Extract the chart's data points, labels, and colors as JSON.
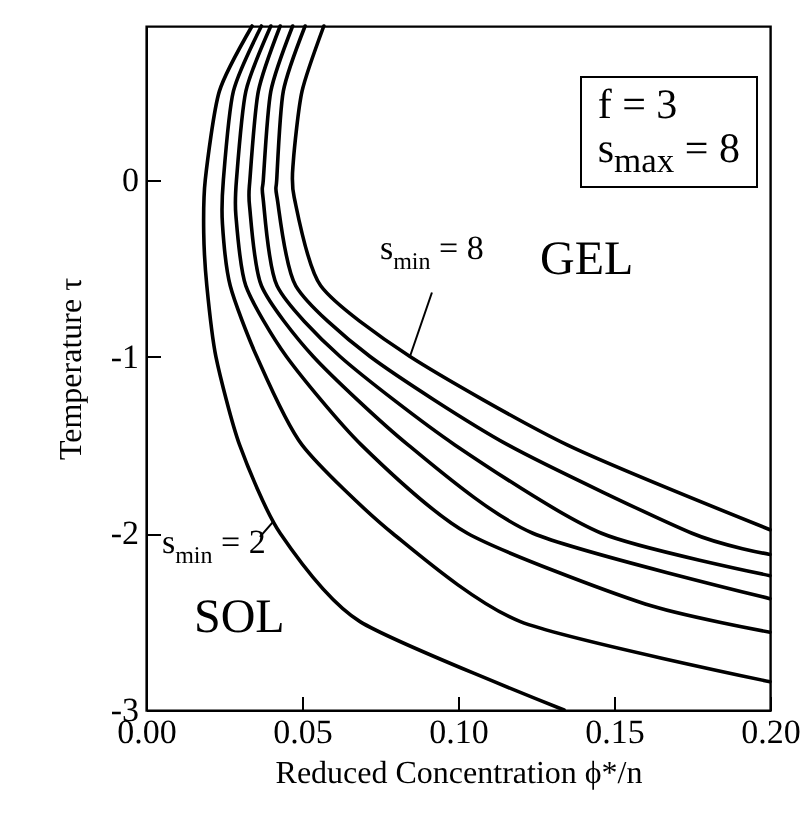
{
  "chart_data": {
    "type": "line",
    "xlabel": "Reduced Concentration  ϕ*/n",
    "ylabel": "Temperature  τ",
    "xlim": [
      0,
      0.2
    ],
    "xticks": [
      {
        "value": 0,
        "label": "0.00"
      },
      0.05,
      {
        "value": 0.1,
        "label": "0.10"
      },
      0.15,
      {
        "value": 0.2,
        "label": "0.20"
      }
    ],
    "ylim": [
      -3,
      0.87
    ],
    "yticks": [
      -3,
      -2,
      -1,
      0
    ],
    "grid": false,
    "marker": "none",
    "line_style": "solid",
    "series": [
      {
        "color": "#000000",
        "x": [
          0.034,
          0.0235,
          0.019,
          0.0185,
          0.0195,
          0.0224,
          0.03,
          0.043,
          0.0686,
          0.134
        ],
        "values": [
          0.87,
          0.5,
          0,
          -0.3,
          -0.6,
          -1,
          -1.5,
          -2,
          -2.5,
          -3
        ]
      },
      {
        "color": "#000000",
        "x": [
          0.037,
          0.028,
          0.0248,
          0.0245,
          0.027,
          0.0355,
          0.05,
          0.079,
          0.12,
          0.2
        ],
        "values": [
          0.87,
          0.5,
          0,
          -0.25,
          -0.6,
          -1,
          -1.5,
          -2,
          -2.5,
          -2.84
        ]
      },
      {
        "color": "#000000",
        "x": [
          0.04,
          0.032,
          0.029,
          0.0288,
          0.032,
          0.045,
          0.069,
          0.103,
          0.16,
          0.2
        ],
        "values": [
          0.87,
          0.5,
          0,
          -0.2,
          -0.6,
          -1,
          -1.5,
          -2,
          -2.4,
          -2.56
        ]
      },
      {
        "color": "#000000",
        "x": [
          0.043,
          0.036,
          0.0333,
          0.0332,
          0.037,
          0.0536,
          0.084,
          0.124,
          0.2
        ],
        "values": [
          0.87,
          0.5,
          0,
          -0.15,
          -0.6,
          -1,
          -1.5,
          -2,
          -2.37
        ]
      },
      {
        "color": "#000000",
        "x": [
          0.047,
          0.04,
          0.0376,
          0.0375,
          0.042,
          0.0622,
          0.099,
          0.146,
          0.2
        ],
        "values": [
          0.87,
          0.5,
          0,
          -0.1,
          -0.6,
          -1,
          -1.5,
          -2,
          -2.24
        ]
      },
      {
        "color": "#000000",
        "x": [
          0.051,
          0.044,
          0.0419,
          0.042,
          0.048,
          0.0718,
          0.116,
          0.175,
          0.2
        ],
        "values": [
          0.87,
          0.5,
          0,
          -0.1,
          -0.6,
          -1,
          -1.5,
          -2,
          -2.12
        ]
      },
      {
        "color": "#000000",
        "x": [
          0.057,
          0.05,
          0.0472,
          0.0475,
          0.056,
          0.0846,
          0.135,
          0.2
        ],
        "values": [
          0.87,
          0.5,
          0.1,
          -0.1,
          -0.6,
          -1,
          -1.5,
          -1.98
        ]
      }
    ],
    "annotations": [
      "f = 3",
      "s$_{max}$ = 8",
      "GEL",
      "SOL",
      {
        "text": "s$_{min}$ = 8",
        "x": 0.0846,
        "y": -1
      },
      {
        "text": "s$_{min}$ = 2",
        "x": 0.041,
        "y": -1.93
      }
    ]
  }
}
